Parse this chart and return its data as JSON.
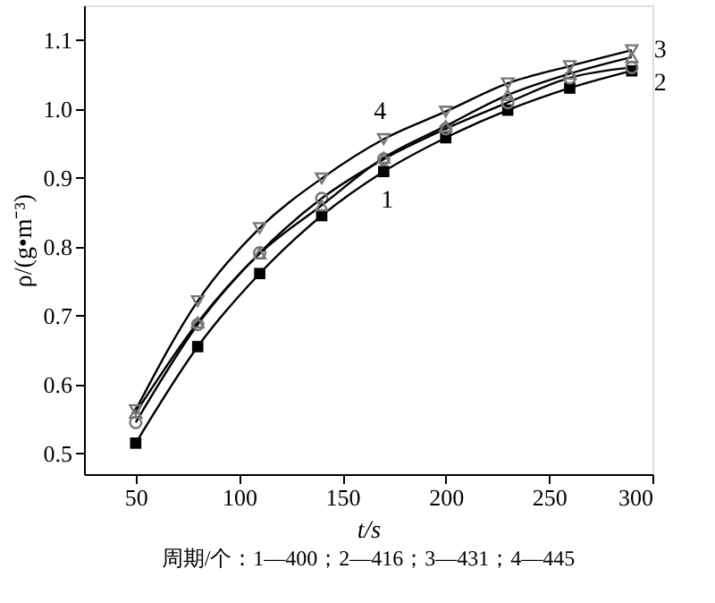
{
  "chart_data": {
    "type": "line",
    "xlabel": "t/s",
    "ylabel": "ρ/(g•m⁻³)",
    "annotations": [
      "周期/个：1—400；2—416；3—431；4—445"
    ],
    "x": [
      50,
      80,
      110,
      140,
      170,
      200,
      230,
      260,
      290
    ],
    "series": [
      {
        "name": "1",
        "color": "#000000",
        "marker": "square",
        "values": [
          0.515,
          0.655,
          0.761,
          0.845,
          0.909,
          0.958,
          0.998,
          1.03,
          1.055
        ]
      },
      {
        "name": "2",
        "color": "#000000",
        "marker": "circle",
        "values": [
          0.545,
          0.687,
          0.791,
          0.87,
          0.927,
          0.971,
          1.009,
          1.045,
          1.06
        ]
      },
      {
        "name": "3",
        "color": "#000000",
        "marker": "triangle",
        "values": [
          0.559,
          0.69,
          0.79,
          0.86,
          0.929,
          0.975,
          1.02,
          1.051,
          1.075
        ]
      },
      {
        "name": "4",
        "color": "#000000",
        "marker": "triangle-down",
        "values": [
          0.563,
          0.721,
          0.827,
          0.899,
          0.956,
          0.996,
          1.037,
          1.062,
          1.085
        ]
      }
    ],
    "xlim": [
      25,
      300
    ],
    "xticks": [
      50,
      100,
      150,
      200,
      250,
      300
    ],
    "ylim": [
      0.47,
      1.15
    ],
    "yticks": [
      0.5,
      0.6,
      0.7,
      0.8,
      0.9,
      {
        "value": 1,
        "label": "1.0"
      },
      1.1
    ],
    "grid": false,
    "legend": false,
    "line_style": "solid"
  }
}
